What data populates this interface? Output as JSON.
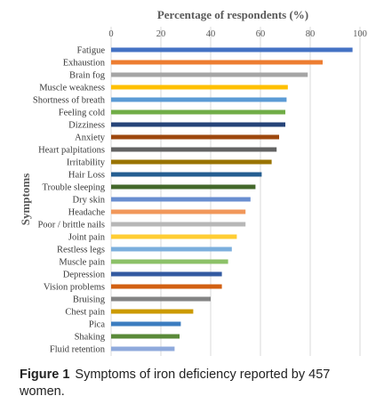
{
  "chart_data": {
    "type": "bar",
    "orientation": "horizontal",
    "xlabel": "Percentage of respondents (%)",
    "ylabel": "Symptoms",
    "xlim": [
      0,
      100
    ],
    "xticks": [
      "0",
      "20",
      "40",
      "60",
      "80",
      "100"
    ],
    "grid": true,
    "legend": "none",
    "categories": [
      "Fatigue",
      "Exhaustion",
      "Brain fog",
      "Muscle weakness",
      "Shortness of breath",
      "Feeling cold",
      "Dizziness",
      "Anxiety",
      "Heart palpitations",
      "Irritability",
      "Hair Loss",
      "Trouble sleeping",
      "Dry skin",
      "Headache",
      "Poor / brittle nails",
      "Joint pain",
      "Restless legs",
      "Muscle pain",
      "Depression",
      "Vision problems",
      "Bruising",
      "Chest pain",
      "Pica",
      "Shaking",
      "Fluid retention"
    ],
    "values": [
      97,
      85,
      79,
      71,
      70.5,
      70,
      70,
      67.5,
      66.5,
      64.5,
      60.5,
      58,
      56,
      54,
      54,
      50.5,
      48.5,
      47,
      44.5,
      44.5,
      40,
      33,
      28,
      27.5,
      25.5
    ],
    "colors": [
      "#4472c4",
      "#ed7d31",
      "#a5a5a5",
      "#ffc000",
      "#5b9bd5",
      "#70ad47",
      "#264478",
      "#9e480e",
      "#636363",
      "#997300",
      "#255e91",
      "#43682b",
      "#698ed0",
      "#f1975a",
      "#b7b7b7",
      "#ffcd33",
      "#7cafdd",
      "#8cc168",
      "#335aa1",
      "#d26012",
      "#848484",
      "#cc9a00",
      "#3c7dc0",
      "#5a8a39",
      "#8faadc"
    ]
  },
  "caption": {
    "label": "Figure 1",
    "text": "Symptoms of iron deficiency reported by 457 women."
  }
}
